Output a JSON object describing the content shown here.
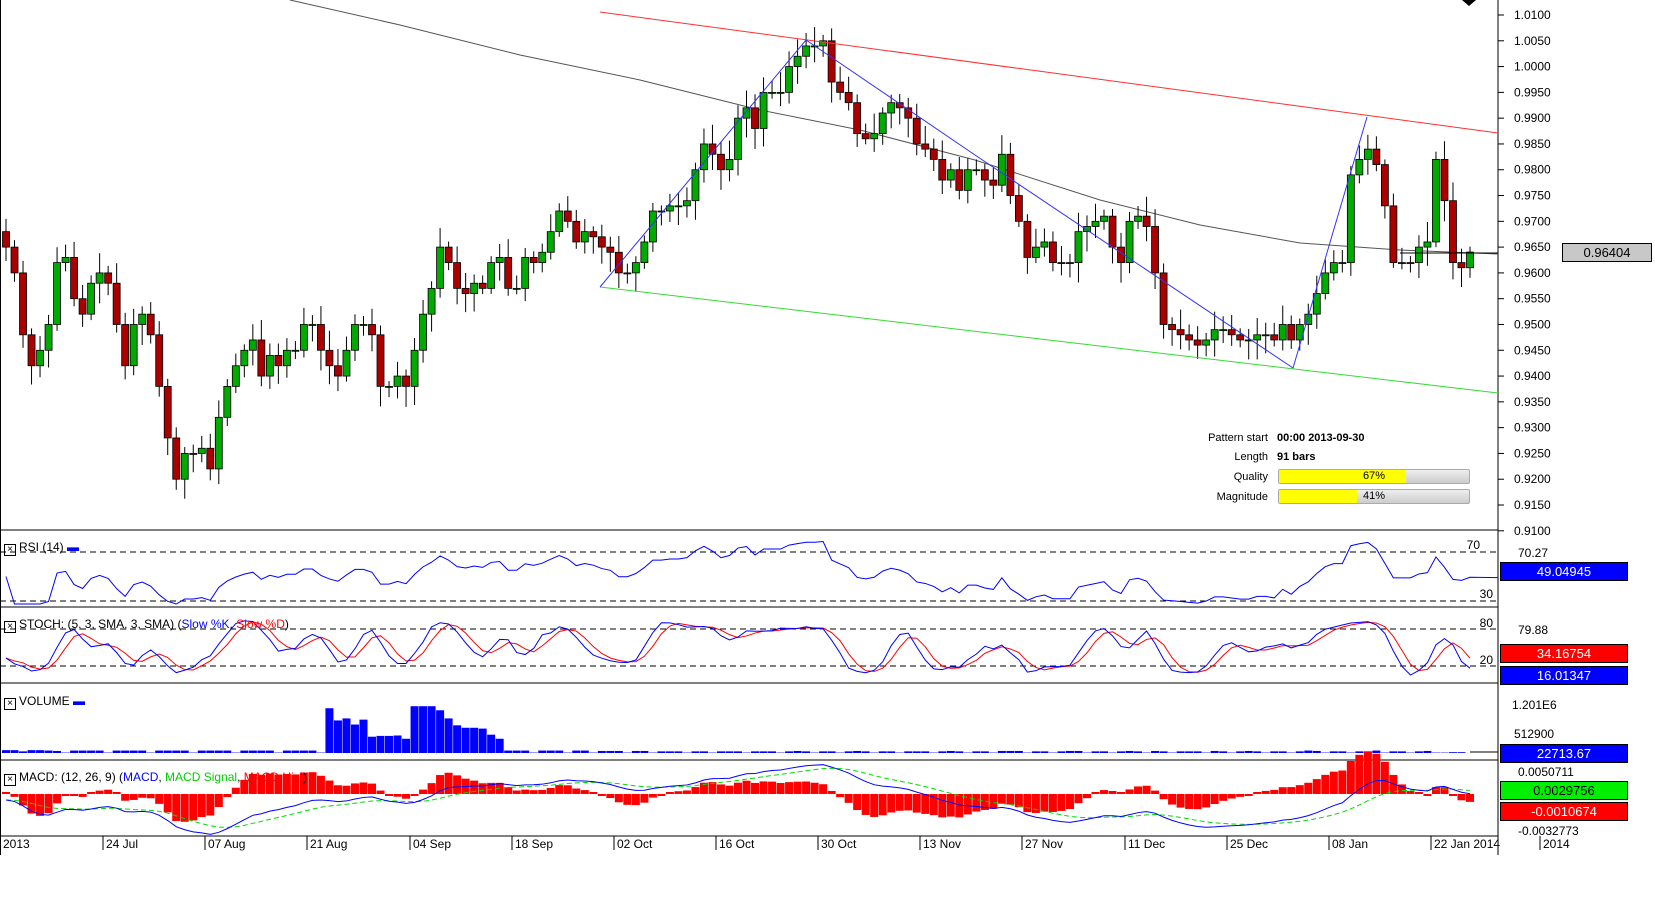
{
  "chart_data": [
    {
      "type": "candlestick",
      "name": "price",
      "ylim": [
        0.91,
        1.011
      ],
      "yticks": [
        "1.0100",
        "1.0050",
        "1.0000",
        "0.9950",
        "0.9900",
        "0.9850",
        "0.9800",
        "0.9750",
        "0.9700",
        "0.9650",
        "0.9600",
        "0.9550",
        "0.9500",
        "0.9450",
        "0.9400",
        "0.9350",
        "0.9300",
        "0.9250",
        "0.9200",
        "0.9150",
        "0.9100"
      ],
      "xticks": [
        "2013",
        "24 Jul",
        "07 Aug",
        "21 Aug",
        "04 Sep",
        "18 Sep",
        "02 Oct",
        "16 Oct",
        "30 Oct",
        "13 Nov",
        "27 Nov",
        "11 Dec",
        "25 Dec",
        "08 Jan",
        "22 Jan 2014",
        "2014"
      ],
      "closes": [
        0.965,
        0.96,
        0.948,
        0.942,
        0.945,
        0.95,
        0.962,
        0.963,
        0.955,
        0.952,
        0.958,
        0.96,
        0.958,
        0.95,
        0.942,
        0.95,
        0.952,
        0.948,
        0.938,
        0.928,
        0.92,
        0.925,
        0.925,
        0.926,
        0.922,
        0.932,
        0.938,
        0.942,
        0.945,
        0.947,
        0.94,
        0.944,
        0.942,
        0.945,
        0.945,
        0.95,
        0.95,
        0.945,
        0.942,
        0.94,
        0.945,
        0.95,
        0.95,
        0.948,
        0.938,
        0.938,
        0.94,
        0.938,
        0.945,
        0.952,
        0.957,
        0.965,
        0.962,
        0.957,
        0.956,
        0.958,
        0.957,
        0.962,
        0.963,
        0.957,
        0.957,
        0.963,
        0.962,
        0.964,
        0.968,
        0.972,
        0.97,
        0.966,
        0.968,
        0.967,
        0.965,
        0.964,
        0.96,
        0.96,
        0.962,
        0.966,
        0.972,
        0.972,
        0.973,
        0.973,
        0.974,
        0.98,
        0.985,
        0.983,
        0.98,
        0.982,
        0.99,
        0.992,
        0.988,
        0.995,
        0.995,
        0.995,
        1.0,
        1.002,
        1.004,
        1.004,
        1.005,
        0.997,
        0.995,
        0.993,
        0.987,
        0.986,
        0.987,
        0.991,
        0.993,
        0.992,
        0.99,
        0.985,
        0.984,
        0.982,
        0.978,
        0.98,
        0.976,
        0.98,
        0.98,
        0.978,
        0.977,
        0.983,
        0.975,
        0.97,
        0.963,
        0.965,
        0.966,
        0.962,
        0.962,
        0.962,
        0.968,
        0.969,
        0.97,
        0.971,
        0.965,
        0.962,
        0.97,
        0.971,
        0.969,
        0.96,
        0.95,
        0.949,
        0.948,
        0.947,
        0.946,
        0.947,
        0.949,
        0.949,
        0.948,
        0.947,
        0.947,
        0.948,
        0.948,
        0.947,
        0.95,
        0.947,
        0.95,
        0.952,
        0.956,
        0.96,
        0.962,
        0.962,
        0.979,
        0.982,
        0.984,
        0.981,
        0.973,
        0.962,
        0.962,
        0.962,
        0.965,
        0.966,
        0.982,
        0.974,
        0.962,
        0.961,
        0.96404
      ],
      "last_price": "0.96404"
    },
    {
      "type": "line",
      "name": "RSI (14)",
      "levels": [
        "70",
        "30"
      ],
      "axis_label": "70.27",
      "last": "49.04945"
    },
    {
      "type": "line",
      "name": "STOCH",
      "levels": [
        "80",
        "20"
      ],
      "axis_label": "79.88",
      "series": [
        "Slow %K",
        "Slow %D"
      ],
      "last_d": "34.16754",
      "last_k": "16.01347"
    },
    {
      "type": "bar",
      "name": "VOLUME",
      "axis_labels": [
        "1.201E6",
        "512900"
      ],
      "last": "22713.67",
      "values": [
        70,
        70,
        40,
        70,
        70,
        60,
        50,
        10,
        60,
        60,
        60,
        60,
        10,
        60,
        60,
        60,
        60,
        10,
        60,
        60,
        60,
        60,
        10,
        60,
        60,
        60,
        60,
        10,
        60,
        60,
        60,
        60,
        10,
        60,
        60,
        60,
        60,
        10,
        1100,
        800,
        850,
        700,
        820,
        400,
        420,
        420,
        430,
        350,
        1150,
        1150,
        1150,
        1050,
        850,
        680,
        620,
        620,
        600,
        450,
        350,
        60,
        60,
        60,
        10,
        60,
        60,
        60,
        10,
        60,
        60,
        10,
        50,
        50,
        50,
        10,
        50,
        50,
        10,
        40,
        40,
        40,
        10,
        40,
        40,
        10,
        40,
        40,
        40,
        10,
        40,
        40,
        40,
        10,
        40,
        50,
        40,
        10,
        40,
        40,
        10,
        40,
        50,
        40,
        10,
        40,
        40,
        10,
        40,
        40,
        40,
        10,
        40,
        50,
        40,
        10,
        40,
        40,
        10,
        50,
        50,
        50,
        10,
        40,
        40,
        10,
        40,
        50,
        50,
        10,
        40,
        40,
        10,
        40,
        50,
        40,
        10,
        50,
        40,
        10,
        40,
        40,
        40,
        10,
        50,
        40,
        10,
        40,
        50,
        40,
        10,
        40,
        40,
        10,
        40,
        60,
        50,
        10,
        40,
        40,
        10,
        40,
        40,
        60,
        10,
        40,
        40,
        10,
        40,
        50,
        10,
        10,
        20,
        20
      ]
    },
    {
      "type": "line",
      "name": "MACD",
      "axis_labels": [
        "0.0050711",
        "-0.0032773"
      ],
      "last_signal": "0.0029756",
      "last_hist": "-0.0010674"
    }
  ],
  "labels": {
    "rsi": "RSI (14)",
    "stoch_prefix": "STOCH: (5, 3, SMA, 3, SMA) (",
    "stoch_k": "Slow %K",
    "stoch_sep": ", ",
    "stoch_d": "Slow %D",
    "stoch_end": ")",
    "volume": "VOLUME",
    "macd_prefix": "MACD: (12, 26, 9) (",
    "macd": "MACD",
    "macd_signal": "MACD Signal",
    "macd_hist": "MACD Hist",
    "macd_end": ")"
  },
  "pattern": {
    "start_label": "Pattern start",
    "start_value": "00:00 2013-09-30",
    "length_label": "Length",
    "length_value": "91 bars",
    "quality_label": "Quality",
    "quality_value": "67%",
    "quality": 67,
    "magnitude_label": "Magnitude",
    "magnitude_value": "41%",
    "magnitude": 41
  },
  "colors": {
    "up": "#00aa00",
    "down": "#aa0000",
    "resistance": "#ff3030",
    "support": "#33dd33",
    "pattern": "#3333ff",
    "ma": "#555555"
  }
}
